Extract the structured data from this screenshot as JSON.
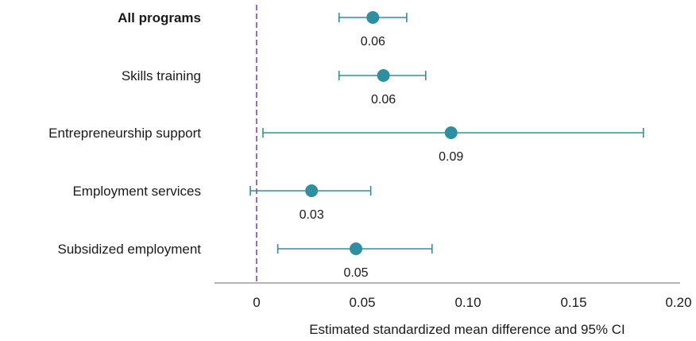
{
  "chart_data": {
    "type": "scatter",
    "subtype": "forest-plot",
    "title": "",
    "xlabel": "Estimated standardized mean difference and 95% CI",
    "ylabel": "",
    "xlim": [
      -0.02,
      0.2
    ],
    "xticks": [
      0,
      0.05,
      0.1,
      0.15,
      0.2
    ],
    "xtick_labels": [
      "0",
      "0.05",
      "0.10",
      "0.15",
      "0.20"
    ],
    "reference_line": {
      "x": 0,
      "style": "dashed",
      "color": "#9b6bbd"
    },
    "grid": false,
    "colors": {
      "point": "#2e8fa0",
      "text": "#1a1a1a",
      "axis": "#888888"
    },
    "categories": [
      "All programs",
      "Skills training",
      "Entrepreneurship support",
      "Employment services",
      "Subsidized employment"
    ],
    "bold_categories": [
      "All programs"
    ],
    "estimates": [
      0.055,
      0.06,
      0.092,
      0.026,
      0.047
    ],
    "ci_lower": [
      0.039,
      0.039,
      0.003,
      -0.003,
      0.01
    ],
    "ci_upper": [
      0.071,
      0.08,
      0.183,
      0.054,
      0.083
    ],
    "labels": [
      "0.06",
      "0.06",
      "0.09",
      "0.03",
      "0.05"
    ]
  }
}
